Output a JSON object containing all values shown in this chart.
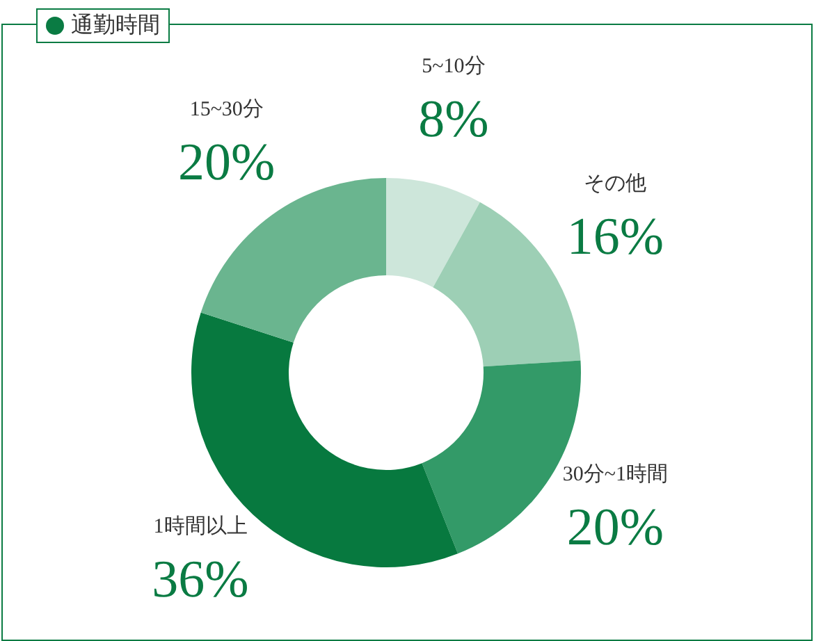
{
  "chart_data": {
    "type": "donut",
    "title": "通勤時間",
    "categories": [
      "5~10分",
      "その他",
      "30分~1時間",
      "1時間以上",
      "15~30分"
    ],
    "values": [
      8,
      16,
      20,
      36,
      20
    ],
    "value_labels": [
      "8%",
      "16%",
      "20%",
      "36%",
      "20%"
    ],
    "colors": [
      "#cde6da",
      "#9dcfb5",
      "#339a68",
      "#07793f",
      "#6ab58f"
    ]
  }
}
